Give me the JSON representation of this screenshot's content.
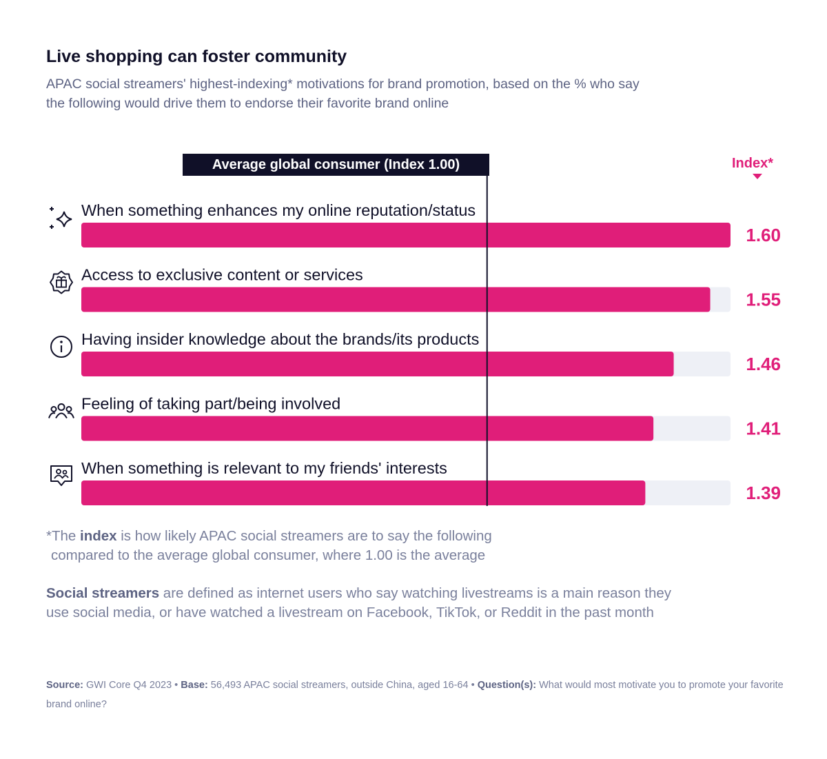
{
  "title": "Live shopping can foster community",
  "subtitle": "APAC social streamers' highest-indexing* motivations for brand promotion, based on the % who say the following would drive them to endorse their favorite brand online",
  "average_label": "Average global consumer (Index 1.00)",
  "index_header": "Index*",
  "chart_data": {
    "type": "bar",
    "orientation": "horizontal",
    "categories": [
      "When something enhances my online reputation/status",
      "Access to exclusive content or services",
      "Having insider knowledge about the brands/its products",
      "Feeling of taking part/being involved",
      "When something is relevant to my friends' interests"
    ],
    "values": [
      1.6,
      1.55,
      1.46,
      1.41,
      1.39
    ],
    "value_labels": [
      "1.60",
      "1.55",
      "1.46",
      "1.41",
      "1.39"
    ],
    "icons": [
      "sparkles-icon",
      "gift-badge-icon",
      "info-icon",
      "group-icon",
      "friends-chat-icon"
    ],
    "reference_value": 1.0,
    "xlim": [
      0,
      1.6
    ],
    "bar_color": "#e01e79",
    "track_color": "#eef0f6",
    "reference_line_color": "#101028"
  },
  "notes": {
    "index_prefix": "*The ",
    "index_bold": "index",
    "index_rest": " is how likely APAC social streamers are to say the following",
    "index_line2": "compared to the average global consumer, where 1.00 is the average",
    "streamers_bold": "Social streamers",
    "streamers_rest": " are defined as internet users who say watching livestreams is a main reason they use social media, or have watched a livestream on Facebook, TikTok, or Reddit in the past month"
  },
  "source": {
    "source_label": "Source:",
    "source_text": " GWI Core Q4 2023 • ",
    "base_label": "Base:",
    "base_text": " 56,493 APAC social streamers, outside China, aged 16-64 • ",
    "question_label": "Question(s):",
    "question_text": " What would most motivate you to promote your favorite brand online?"
  }
}
